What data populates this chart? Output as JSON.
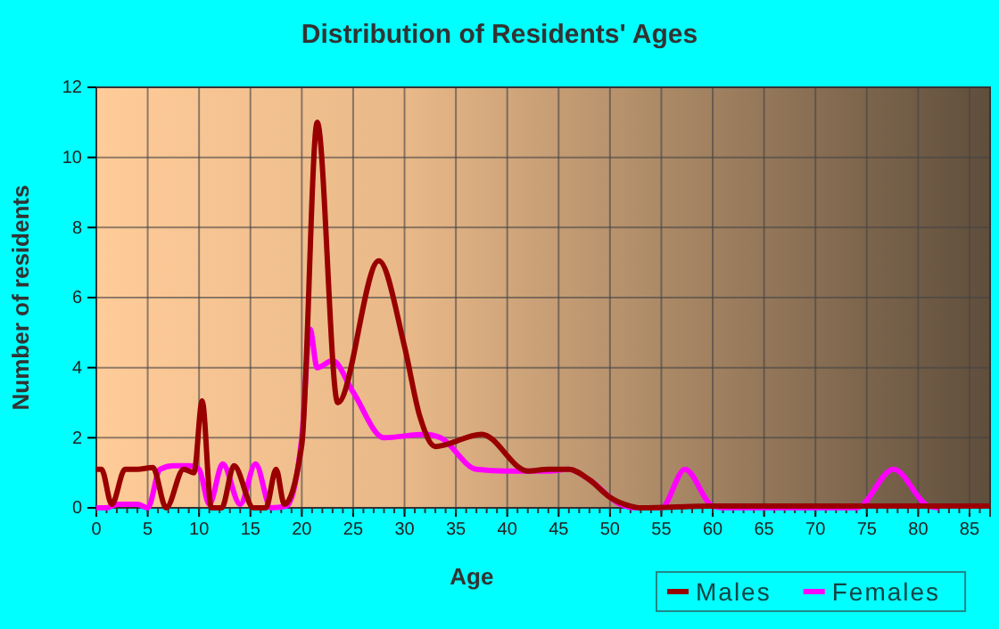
{
  "chart_data": {
    "type": "line",
    "title": "Distribution of Residents' Ages",
    "xlabel": "Age",
    "ylabel": "Number of residents",
    "xlim": [
      0,
      87
    ],
    "xticks": [
      0,
      5,
      10,
      15,
      20,
      25,
      30,
      35,
      40,
      45,
      50,
      55,
      60,
      65,
      70,
      75,
      80,
      85
    ],
    "ylim": [
      0,
      12
    ],
    "yticks": [
      0,
      2,
      4,
      6,
      8,
      10,
      12
    ],
    "grid": true,
    "legend": "bottom",
    "marker": "none",
    "line_style": "solid",
    "series": [
      {
        "name": "Males",
        "color": "#990000",
        "x": [
          0,
          0.5,
          1.5,
          2.8,
          4,
          5.5,
          6.8,
          8.5,
          9.5,
          10.3,
          11.2,
          12.2,
          13.4,
          15.3,
          16.5,
          17.5,
          18.3,
          20,
          21.5,
          23.5,
          27.5,
          30,
          31.5,
          33,
          37.5,
          42,
          44,
          46,
          48,
          50,
          52,
          53,
          60,
          70,
          80,
          87
        ],
        "values": [
          1.1,
          1.1,
          0.1,
          1.1,
          1.1,
          1.15,
          0,
          1.1,
          1,
          3.05,
          0,
          0,
          1.2,
          0,
          0,
          1.1,
          0.1,
          1.8,
          11,
          3,
          7.05,
          4.6,
          2.6,
          1.75,
          2.1,
          1.05,
          1.1,
          1.1,
          0.8,
          0.3,
          0.05,
          0,
          0.05,
          0.05,
          0.05,
          0.05
        ]
      },
      {
        "name": "Females",
        "color": "#ff00ff",
        "x": [
          0,
          1,
          2,
          4,
          5,
          6.2,
          7.5,
          9,
          10,
          11,
          12.3,
          14,
          15.5,
          17,
          18.5,
          20,
          20.8,
          21.5,
          23,
          25,
          28,
          32,
          33.5,
          37,
          40,
          44,
          46,
          48,
          51,
          52.5,
          55,
          57.3,
          60,
          61,
          72,
          74,
          77.6,
          81,
          82
        ],
        "values": [
          0,
          0,
          0.1,
          0.1,
          0,
          1.1,
          1.2,
          1.2,
          1.1,
          0.1,
          1.25,
          0.1,
          1.25,
          0,
          0.05,
          2,
          5.1,
          4,
          4.2,
          3.3,
          2,
          2.1,
          2,
          1.1,
          1.05,
          1.05,
          1.1,
          0.8,
          0.1,
          0,
          0,
          1.1,
          0.05,
          0,
          0,
          0,
          1.1,
          0.05,
          0
        ]
      }
    ]
  }
}
